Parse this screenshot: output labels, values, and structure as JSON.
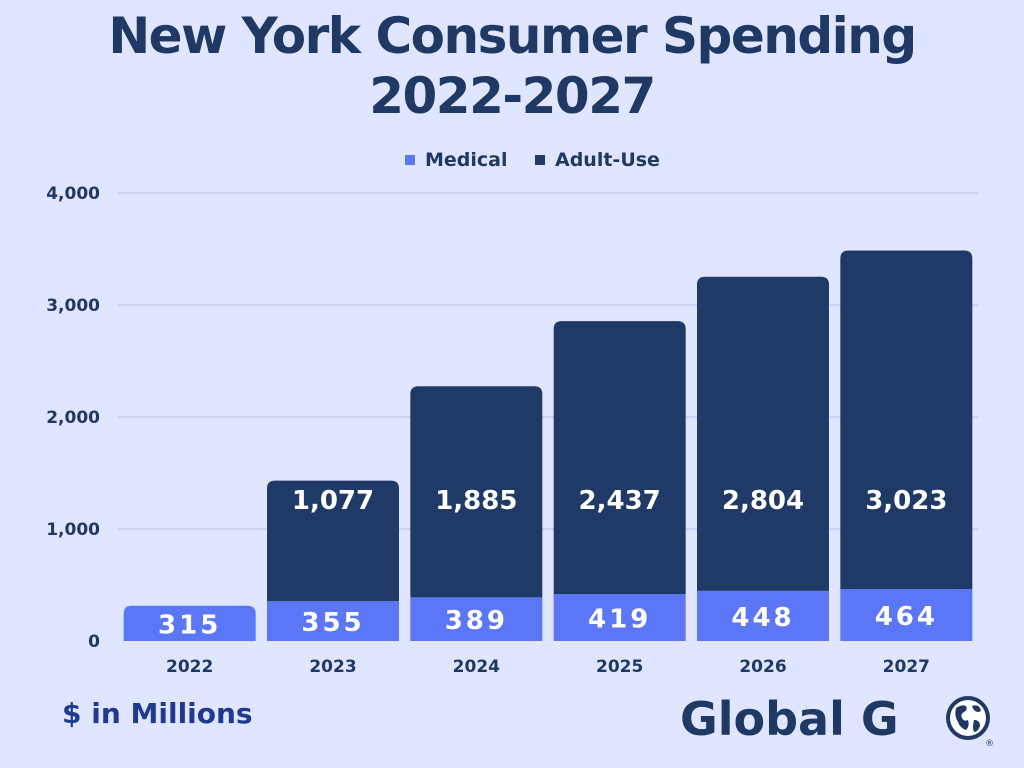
{
  "chart_data": {
    "type": "bar",
    "stacked": true,
    "title": "New York Consumer Spending 2022-2027",
    "title_lines": [
      "New York Consumer Spending",
      "2022-2027"
    ],
    "categories": [
      "2022",
      "2023",
      "2024",
      "2025",
      "2026",
      "2027"
    ],
    "series": [
      {
        "name": "Medical",
        "color": "#5b76f7",
        "values": [
          315,
          355,
          389,
          419,
          448,
          464
        ],
        "labels": [
          "315",
          "355",
          "389",
          "419",
          "448",
          "464"
        ]
      },
      {
        "name": "Adult-Use",
        "color": "#1f3a66",
        "values": [
          0,
          1077,
          1885,
          2437,
          2804,
          3023
        ],
        "labels": [
          "",
          "1,077",
          "1,885",
          "2,437",
          "2,804",
          "3,023"
        ]
      }
    ],
    "ylim": [
      0,
      4000
    ],
    "yticks": [
      0,
      1000,
      2000,
      3000,
      4000
    ],
    "ytick_labels": [
      "0",
      "1,000",
      "2,000",
      "3,000",
      "4,000"
    ],
    "legend_position": "top-center",
    "grid": true,
    "units_note": "$ in Millions"
  },
  "branding": {
    "logo_text": "Global G",
    "logo_icon": "globe-icon",
    "registered_mark": "®"
  },
  "colors": {
    "background": "#e0e6ff",
    "title": "#1f3864",
    "axis_text": "#1f3864",
    "grid": "#b9c3e6",
    "note_text": "#1f3a8f"
  }
}
